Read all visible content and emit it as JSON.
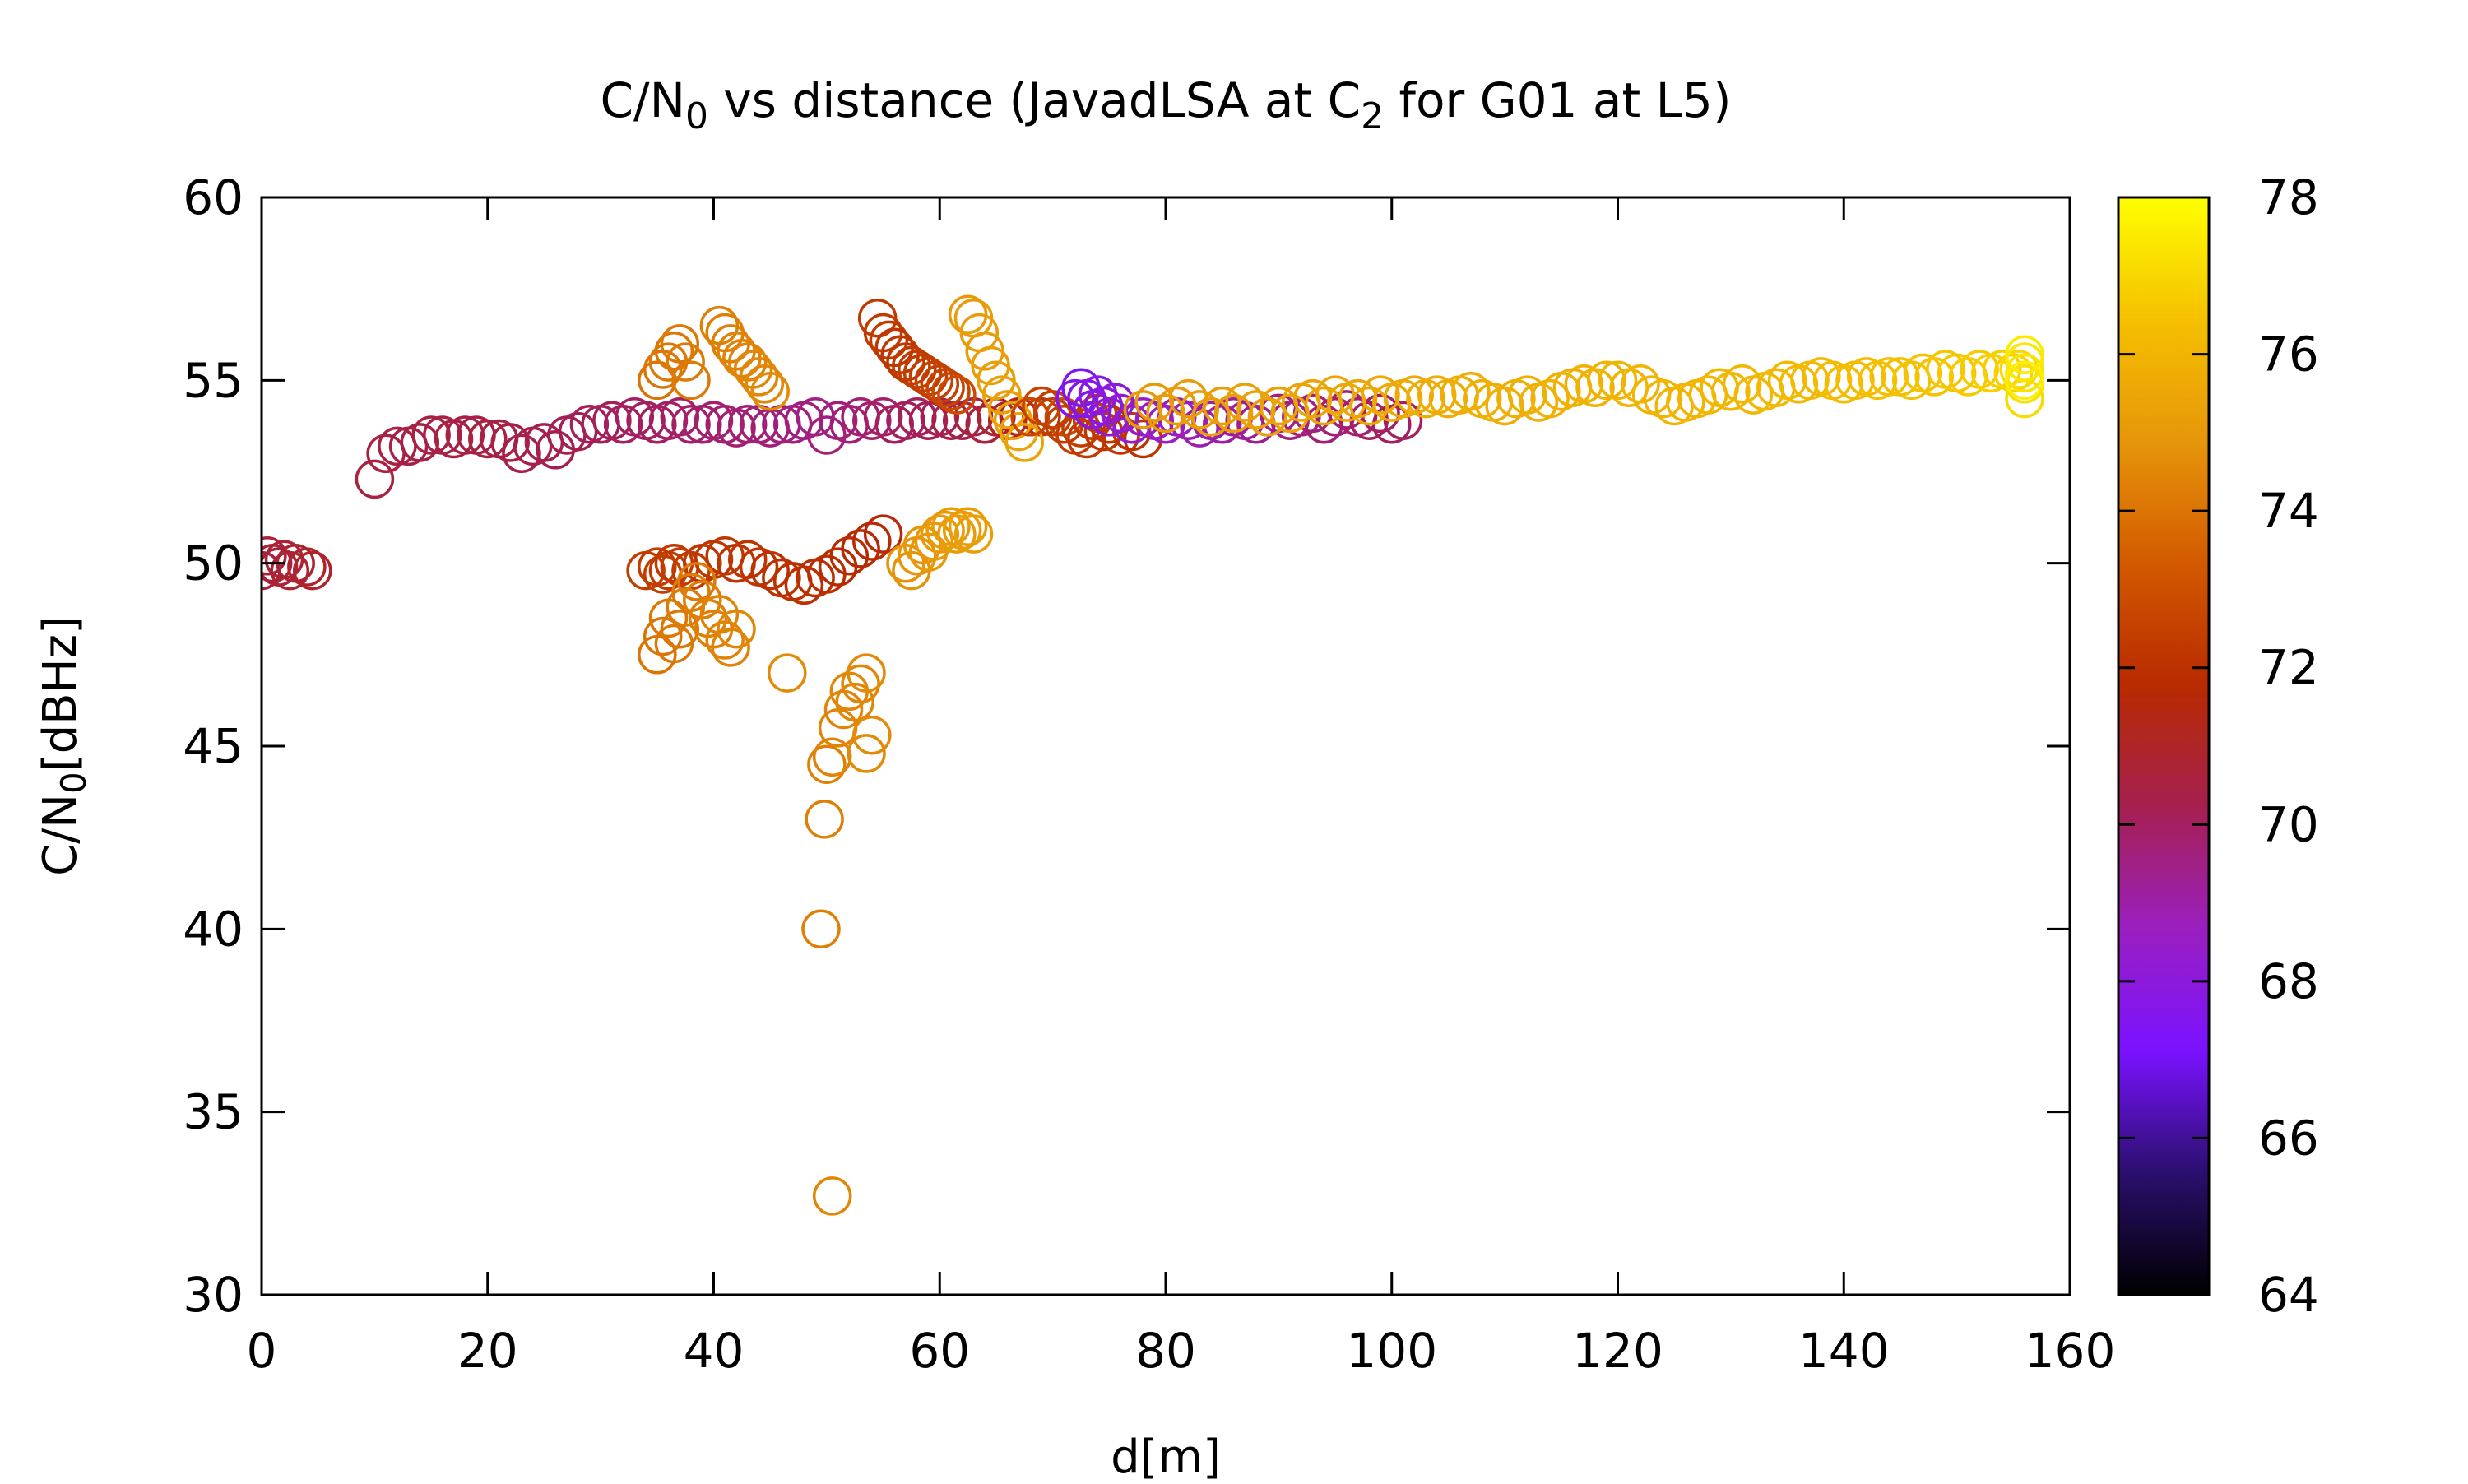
{
  "chart_data": {
    "type": "scatter",
    "title": {
      "pre": "C/N",
      "sub1": "0",
      "mid": " vs distance (JavadLSA at C",
      "sub2": "2",
      "post": " for G01 at L5)"
    },
    "xlabel": "d[m]",
    "ylabel": {
      "pre": "C/N",
      "sub": "0",
      "post": "[dBHz]"
    },
    "xlim": [
      0,
      160
    ],
    "ylim": [
      30,
      60
    ],
    "xticks": [
      0,
      20,
      40,
      60,
      80,
      100,
      120,
      140,
      160
    ],
    "yticks": [
      30,
      35,
      40,
      45,
      50,
      55,
      60
    ],
    "colorbar": {
      "range": [
        64,
        78
      ],
      "ticks": [
        64,
        66,
        68,
        70,
        72,
        74,
        76,
        78
      ],
      "palette": "black-purple-red-orange-yellow",
      "stops": [
        "#000000",
        "#2a0f6e",
        "#7a12ff",
        "#9a1fc0",
        "#a52050",
        "#b82a00",
        "#d25a00",
        "#e6960a",
        "#f5c000",
        "#ffff00"
      ]
    },
    "marker": "open-circle",
    "grid": false,
    "legend": "none",
    "series": [
      {
        "x": [
          0,
          0.5,
          1,
          1.5,
          2,
          2.5,
          3,
          4,
          4.5
        ],
        "y": [
          49.8,
          50.2,
          50.0,
          49.9,
          50.1,
          49.8,
          50.0,
          49.9,
          49.8
        ],
        "c": [
          70.5,
          70.6,
          70.6,
          70.7,
          70.7,
          70.8,
          70.8,
          70.9,
          70.9
        ]
      },
      {
        "x": [
          10,
          11,
          12,
          13,
          14,
          15,
          16,
          17,
          18,
          19,
          20,
          21,
          22,
          23,
          24,
          25,
          26,
          27,
          28,
          29,
          30,
          31,
          32,
          33,
          34,
          35,
          36,
          37,
          38,
          39,
          40,
          41,
          42,
          43,
          44,
          45,
          46,
          47,
          48,
          49,
          50,
          51,
          52,
          53,
          54,
          55,
          56,
          57,
          58,
          59,
          60,
          61,
          62,
          63,
          64,
          65,
          66,
          67,
          68,
          69,
          70,
          71
        ],
        "y": [
          52.3,
          53.0,
          53.2,
          53.2,
          53.3,
          53.5,
          53.5,
          53.4,
          53.5,
          53.5,
          53.4,
          53.4,
          53.3,
          53.0,
          53.2,
          53.3,
          53.1,
          53.5,
          53.6,
          53.8,
          53.8,
          53.9,
          53.8,
          54.0,
          53.9,
          53.8,
          53.9,
          54.0,
          53.8,
          53.8,
          53.9,
          53.8,
          53.7,
          53.8,
          53.8,
          53.7,
          53.8,
          53.8,
          53.9,
          54.0,
          53.5,
          53.9,
          53.8,
          54.0,
          53.9,
          54.0,
          53.8,
          53.9,
          54.0,
          53.9,
          54.0,
          53.9,
          53.9,
          54.0,
          53.8,
          54.0,
          53.9,
          54.0,
          54.0,
          54.0,
          54.0,
          54.0
        ],
        "c": [
          70.5,
          70.5,
          70.5,
          70.4,
          70.4,
          70.5,
          70.4,
          70.5,
          70.4,
          70.4,
          70.5,
          70.4,
          70.4,
          70.3,
          70.3,
          70.3,
          70.2,
          70.2,
          70.2,
          70.1,
          70.1,
          70.1,
          70.0,
          70.0,
          70.0,
          70.0,
          69.9,
          69.9,
          69.9,
          69.8,
          69.8,
          69.8,
          69.8,
          69.7,
          69.7,
          69.7,
          69.6,
          69.6,
          69.6,
          69.5,
          69.6,
          69.6,
          69.7,
          69.8,
          69.8,
          69.9,
          70.0,
          70.0,
          70.1,
          70.2,
          70.2,
          70.3,
          70.4,
          70.5,
          70.6,
          70.8,
          71.0,
          71.3,
          71.6,
          72.0,
          72.4,
          72.8
        ]
      },
      {
        "x": [
          34,
          35,
          35.5,
          36,
          36.5,
          37,
          38,
          39,
          40,
          41,
          42,
          43,
          44,
          45,
          46,
          47,
          48,
          49,
          50,
          51,
          52,
          53,
          54,
          55
        ],
        "y": [
          49.8,
          49.9,
          49.7,
          49.8,
          50.0,
          49.9,
          49.8,
          50.0,
          50.1,
          50.2,
          50.0,
          50.1,
          49.9,
          49.8,
          49.6,
          49.5,
          49.4,
          49.6,
          49.7,
          49.9,
          50.2,
          50.4,
          50.6,
          50.8
        ],
        "c": [
          72.4,
          72.4,
          72.4,
          72.3,
          72.3,
          72.3,
          72.3,
          72.2,
          72.2,
          72.2,
          72.1,
          72.1,
          72.1,
          72.0,
          72.0,
          72.0,
          71.9,
          71.9,
          71.9,
          71.8,
          71.8,
          71.7,
          71.7,
          71.6
        ]
      },
      {
        "x": [
          35,
          35.5,
          36,
          36.5,
          37,
          37.5,
          38,
          38.5,
          39,
          39.5,
          40,
          40.5,
          41,
          41.5,
          42
        ],
        "y": [
          47.5,
          48.0,
          48.5,
          47.8,
          48.2,
          48.8,
          49.2,
          49.5,
          49.0,
          48.5,
          48.2,
          48.6,
          47.9,
          47.7,
          48.2
        ],
        "c": [
          74.0,
          74.0,
          74.1,
          74.1,
          74.1,
          74.2,
          74.2,
          74.2,
          74.3,
          74.3,
          74.3,
          74.4,
          74.4,
          74.4,
          74.5
        ]
      },
      {
        "x": [
          46.5,
          49.5,
          49.8,
          50,
          50.5,
          51,
          51.5,
          52,
          52.5,
          53,
          53.5,
          54
        ],
        "y": [
          47.0,
          40.0,
          43.0,
          44.5,
          44.7,
          45.5,
          46.0,
          46.5,
          46.2,
          46.7,
          47.0,
          45.3
        ],
        "c": [
          74.6,
          74.3,
          74.3,
          74.3,
          74.4,
          74.4,
          74.4,
          74.5,
          74.5,
          74.5,
          74.6,
          74.6
        ]
      },
      {
        "x": [
          50.5,
          53.5
        ],
        "y": [
          32.7,
          44.8
        ],
        "c": [
          74.5,
          74.6
        ]
      },
      {
        "x": [
          57,
          57.5,
          58,
          58.5,
          59,
          59.5,
          60,
          60.5,
          61,
          61.5,
          62,
          62.5,
          63
        ],
        "y": [
          50.0,
          49.8,
          50.2,
          50.5,
          50.3,
          50.6,
          50.8,
          50.9,
          51.0,
          50.8,
          50.9,
          51.0,
          50.8
        ],
        "c": [
          74.8,
          74.8,
          74.9,
          74.9,
          75.0,
          75.0,
          75.0,
          75.1,
          75.1,
          75.1,
          75.2,
          75.2,
          75.2
        ]
      },
      {
        "x": [
          35,
          35.5,
          36,
          36.5,
          37,
          37.5,
          38,
          40.5,
          41,
          41.5,
          42,
          42.5,
          43,
          43.5,
          44,
          44.5,
          45
        ],
        "y": [
          55.0,
          55.3,
          55.5,
          55.8,
          56.0,
          55.5,
          55.0,
          56.5,
          56.3,
          56.0,
          55.8,
          55.6,
          55.5,
          55.3,
          55.1,
          54.9,
          54.7
        ],
        "c": [
          74.0,
          74.0,
          74.1,
          74.1,
          74.1,
          74.2,
          74.2,
          74.3,
          74.3,
          74.3,
          74.4,
          74.4,
          74.4,
          74.5,
          74.5,
          74.5,
          74.6
        ]
      },
      {
        "x": [
          54.5,
          55,
          55.5,
          56,
          56.5,
          57,
          57.5,
          58,
          58.5,
          59,
          59.5,
          60,
          60.5,
          61,
          61.5
        ],
        "y": [
          56.7,
          56.3,
          56.1,
          55.9,
          55.7,
          55.5,
          55.4,
          55.3,
          55.2,
          55.1,
          55.0,
          54.9,
          54.8,
          54.7,
          54.6
        ],
        "c": [
          72.3,
          72.3,
          72.3,
          72.2,
          72.2,
          72.2,
          72.3,
          72.3,
          72.4,
          72.4,
          72.5,
          72.5,
          72.6,
          72.7,
          72.8
        ]
      },
      {
        "x": [
          62.5,
          63,
          63.5,
          64,
          64.5,
          65,
          65.5,
          66,
          66.5,
          67,
          67.5
        ],
        "y": [
          56.8,
          56.7,
          56.3,
          55.8,
          55.4,
          55.0,
          54.6,
          54.2,
          53.9,
          53.6,
          53.3
        ],
        "c": [
          75.0,
          75.1,
          75.1,
          75.1,
          75.2,
          75.2,
          75.3,
          75.3,
          75.3,
          75.4,
          75.4
        ]
      },
      {
        "x": [
          68,
          69,
          70,
          71,
          72,
          72.5,
          73,
          73.5,
          74,
          74.5,
          75,
          76,
          77,
          78
        ],
        "y": [
          54.0,
          54.3,
          54.2,
          53.8,
          53.5,
          53.7,
          53.4,
          53.9,
          54.1,
          53.6,
          53.8,
          53.5,
          53.6,
          53.4
        ],
        "c": [
          72.7,
          72.6,
          72.5,
          72.4,
          72.4,
          72.4,
          72.3,
          72.3,
          72.3,
          72.2,
          72.2,
          72.2,
          72.1,
          72.1
        ]
      },
      {
        "x": [
          72,
          72.5,
          73,
          73.5,
          74,
          74.5,
          75,
          75.5,
          76,
          77,
          78,
          79,
          80,
          81,
          82,
          83,
          84,
          85,
          86,
          87,
          88,
          89,
          90,
          91,
          92,
          93,
          94,
          95,
          96,
          97,
          98,
          99,
          100,
          101
        ],
        "y": [
          54.5,
          54.8,
          54.5,
          54.2,
          54.6,
          54.3,
          54.0,
          54.4,
          54.1,
          53.8,
          54.0,
          53.9,
          53.8,
          54.0,
          53.9,
          53.7,
          53.9,
          53.8,
          54.0,
          53.9,
          53.8,
          54.0,
          54.1,
          53.9,
          54.0,
          54.1,
          53.8,
          54.0,
          54.2,
          54.0,
          53.9,
          54.1,
          53.8,
          53.9
        ],
        "c": [
          67.5,
          67.4,
          67.6,
          67.7,
          67.8,
          67.9,
          68.0,
          68.1,
          68.2,
          68.3,
          68.4,
          68.5,
          68.6,
          68.7,
          68.8,
          68.9,
          69.0,
          69.1,
          69.1,
          69.2,
          69.3,
          69.3,
          69.4,
          69.5,
          69.5,
          69.6,
          69.7,
          69.7,
          69.8,
          69.8,
          69.9,
          69.9,
          70.0,
          70.0
        ]
      },
      {
        "x": [
          78,
          79,
          80,
          81,
          82,
          83,
          84,
          85,
          86,
          87,
          88,
          89,
          90,
          91,
          92,
          93,
          94,
          95,
          96,
          97,
          98,
          99,
          100
        ],
        "y": [
          54.2,
          54.4,
          54.1,
          54.3,
          54.5,
          54.2,
          54.0,
          54.3,
          54.1,
          54.4,
          54.2,
          54.0,
          54.3,
          54.1,
          54.4,
          54.5,
          54.3,
          54.6,
          54.4,
          54.5,
          54.3,
          54.6,
          54.4
        ],
        "c": [
          75.0,
          75.0,
          75.1,
          75.1,
          75.1,
          75.2,
          75.2,
          75.2,
          75.2,
          75.3,
          75.3,
          75.3,
          75.3,
          75.4,
          75.4,
          75.4,
          75.4,
          75.5,
          75.5,
          75.5,
          75.5,
          75.6,
          75.6
        ]
      },
      {
        "x": [
          101,
          102,
          103,
          104,
          105,
          106,
          107,
          108,
          109,
          110,
          111,
          112,
          113,
          114,
          115,
          116,
          117,
          118,
          119,
          120,
          121,
          122,
          123,
          124,
          125,
          126,
          127,
          128,
          129,
          130,
          131,
          132,
          133,
          134,
          135,
          136,
          137,
          138,
          139,
          140,
          141,
          142,
          143,
          144,
          145,
          146,
          147,
          148,
          149,
          150,
          151,
          152,
          153,
          154,
          155
        ],
        "y": [
          54.5,
          54.6,
          54.5,
          54.6,
          54.5,
          54.6,
          54.7,
          54.5,
          54.4,
          54.3,
          54.5,
          54.6,
          54.4,
          54.5,
          54.7,
          54.8,
          54.9,
          54.8,
          55.0,
          55.0,
          54.8,
          54.9,
          54.6,
          54.5,
          54.3,
          54.4,
          54.5,
          54.6,
          54.8,
          54.7,
          54.9,
          54.6,
          54.7,
          54.8,
          55.0,
          54.9,
          55.0,
          55.1,
          55.0,
          54.9,
          55.0,
          55.1,
          55.0,
          55.1,
          55.1,
          55.0,
          55.2,
          55.1,
          55.3,
          55.2,
          55.1,
          55.3,
          55.2,
          55.3,
          55.2
        ],
        "c": [
          75.6,
          75.6,
          75.7,
          75.7,
          75.7,
          75.7,
          75.8,
          75.8,
          75.8,
          75.8,
          75.8,
          75.8,
          75.8,
          75.9,
          75.9,
          75.9,
          75.9,
          75.9,
          75.9,
          76.0,
          76.0,
          76.0,
          76.0,
          76.0,
          76.0,
          76.0,
          76.0,
          76.1,
          76.1,
          76.1,
          76.1,
          76.1,
          76.1,
          76.2,
          76.2,
          76.2,
          76.2,
          76.2,
          76.3,
          76.3,
          76.3,
          76.3,
          76.4,
          76.4,
          76.4,
          76.5,
          76.5,
          76.5,
          76.6,
          76.6,
          76.7,
          76.7,
          76.8,
          76.8,
          76.9
        ]
      },
      {
        "x": [
          155.5,
          156,
          156,
          156,
          156,
          156,
          156
        ],
        "y": [
          55.3,
          54.5,
          54.9,
          55.2,
          55.5,
          55.7,
          55.0
        ],
        "c": [
          77.0,
          77.1,
          77.2,
          77.3,
          77.4,
          77.5,
          77.6
        ]
      }
    ]
  }
}
